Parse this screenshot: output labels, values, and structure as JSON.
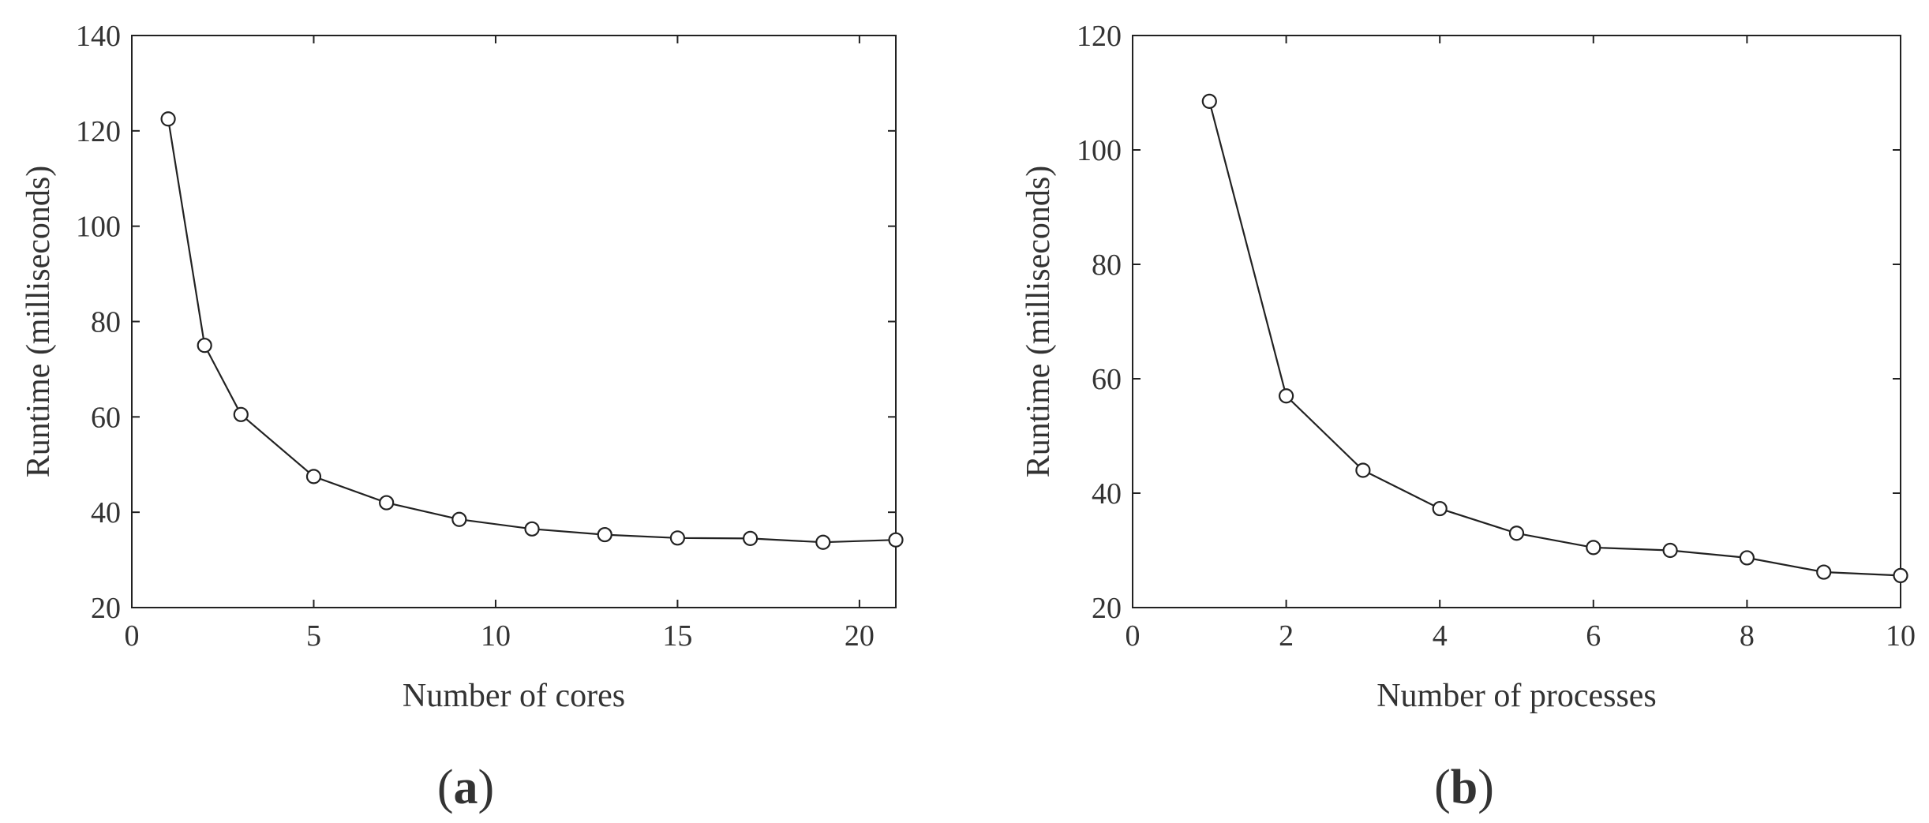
{
  "chart_data": [
    {
      "type": "line",
      "panel_label": "a",
      "xlabel": "Number of cores",
      "ylabel": "Runtime (milliseconds)",
      "xlim": [
        0,
        21
      ],
      "ylim": [
        20,
        140
      ],
      "xticks": [
        0,
        5,
        10,
        15,
        20
      ],
      "yticks": [
        20,
        40,
        60,
        80,
        100,
        120,
        140
      ],
      "grid": false,
      "marker": "open-circle",
      "line_color": "#222222",
      "series": [
        {
          "x": [
            1,
            2,
            3,
            5,
            7,
            9,
            11,
            13,
            15,
            17,
            19,
            21
          ],
          "y": [
            122.5,
            75,
            60.5,
            47.5,
            42,
            38.5,
            36.5,
            35.3,
            34.6,
            34.5,
            33.7,
            34.2
          ]
        }
      ]
    },
    {
      "type": "line",
      "panel_label": "b",
      "xlabel": "Number of processes",
      "ylabel": "Runtime (milliseconds)",
      "xlim": [
        0,
        10
      ],
      "ylim": [
        20,
        120
      ],
      "xticks": [
        0,
        2,
        4,
        6,
        8,
        10
      ],
      "yticks": [
        20,
        40,
        60,
        80,
        100,
        120
      ],
      "grid": false,
      "marker": "open-circle",
      "line_color": "#222222",
      "series": [
        {
          "x": [
            1,
            2,
            3,
            4,
            5,
            6,
            7,
            8,
            9,
            10
          ],
          "y": [
            108.5,
            57,
            44,
            37.3,
            33,
            30.5,
            30,
            28.7,
            26.2,
            25.6
          ]
        }
      ]
    }
  ]
}
